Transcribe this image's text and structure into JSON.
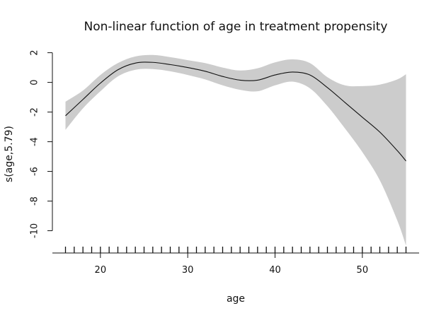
{
  "chart_data": {
    "type": "line",
    "title": "Non-linear function of age in treatment propensity",
    "xlabel": "age",
    "ylabel": "s(age,5.79)",
    "xlim": [
      14.5,
      56.5
    ],
    "ylim": [
      -11.5,
      2.6
    ],
    "x_ticks": [
      20,
      30,
      40,
      50
    ],
    "y_ticks": [
      2,
      0,
      -2,
      -4,
      -6,
      -8,
      -10
    ],
    "grid": false,
    "colors": {
      "fit": "#111111",
      "band": "#cccccc"
    },
    "x": [
      16,
      18,
      20,
      22,
      24,
      26,
      28,
      30,
      32,
      34,
      36,
      38,
      40,
      42,
      44,
      46,
      48,
      50,
      52,
      54,
      55
    ],
    "fit": [
      -2.25,
      -1.15,
      -0.05,
      0.85,
      1.3,
      1.35,
      1.2,
      1.0,
      0.75,
      0.4,
      0.15,
      0.15,
      0.5,
      0.7,
      0.5,
      -0.35,
      -1.35,
      -2.35,
      -3.35,
      -4.6,
      -5.3
    ],
    "lower": [
      -3.2,
      -1.75,
      -0.6,
      0.4,
      0.85,
      0.9,
      0.75,
      0.5,
      0.2,
      -0.2,
      -0.5,
      -0.6,
      -0.2,
      0.05,
      -0.4,
      -1.6,
      -3.1,
      -4.7,
      -6.6,
      -9.3,
      -11.0
    ],
    "upper": [
      -1.3,
      -0.55,
      0.5,
      1.3,
      1.75,
      1.85,
      1.7,
      1.5,
      1.3,
      1.0,
      0.8,
      0.95,
      1.35,
      1.55,
      1.3,
      0.35,
      -0.2,
      -0.25,
      -0.15,
      0.2,
      0.55
    ],
    "rug": [
      16,
      17,
      18,
      19,
      20,
      21,
      22,
      23,
      24,
      25,
      26,
      27,
      28,
      29,
      30,
      31,
      32,
      33,
      34,
      35,
      36,
      37,
      38,
      39,
      40,
      41,
      42,
      43,
      44,
      45,
      46,
      47,
      48,
      49,
      50,
      51,
      52,
      53,
      54,
      55
    ]
  }
}
